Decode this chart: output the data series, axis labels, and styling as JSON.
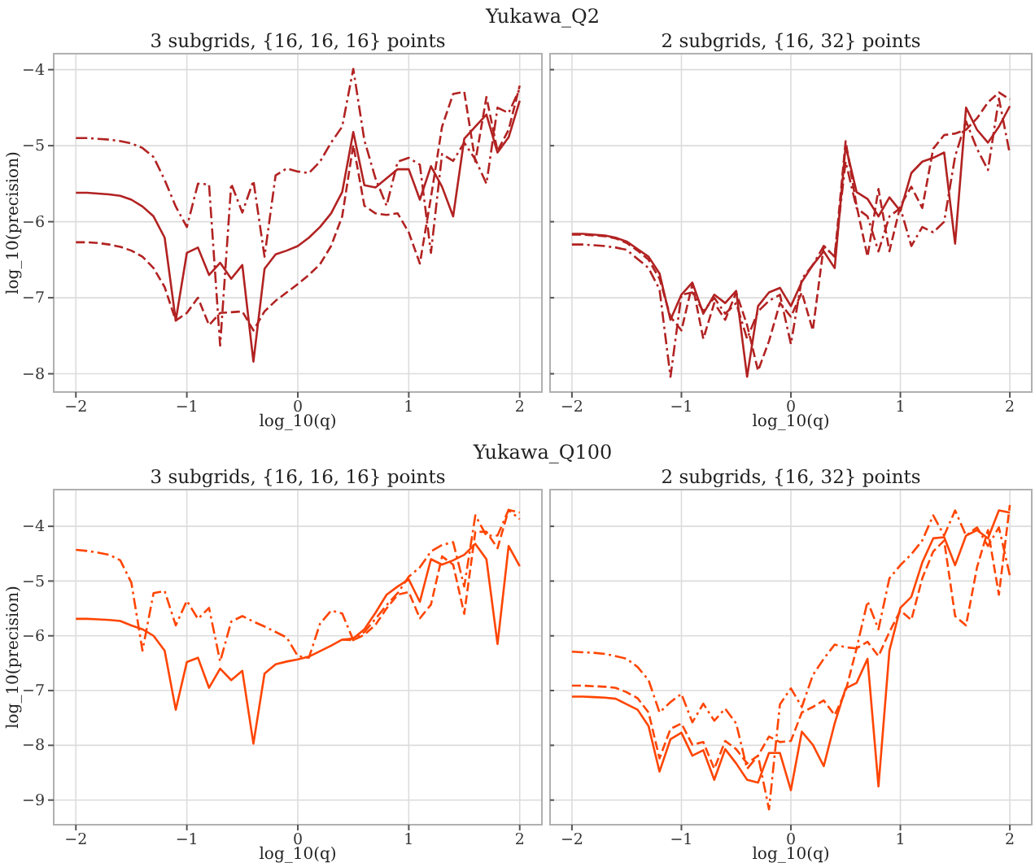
{
  "chart_data": [
    {
      "type": "line",
      "title": "3 subgrids, {16, 16, 16} points",
      "annotations": [
        "Yukawa_Q2"
      ],
      "xlabel": "log_10(q)",
      "ylabel": "log_10(precision)",
      "grid": true,
      "x": [
        -2,
        -1.9,
        -1.8,
        -1.7,
        -1.6,
        -1.5,
        -1.4,
        -1.3,
        -1.2,
        -1.1,
        -1,
        -0.9,
        -0.8,
        -0.7,
        -0.6,
        -0.5,
        -0.4,
        -0.3,
        -0.2,
        -0.1,
        0,
        0.1,
        0.2,
        0.3,
        0.4,
        0.5,
        0.6,
        0.7,
        0.8,
        0.9,
        1,
        1.1,
        1.2,
        1.3,
        1.4,
        1.5,
        1.6,
        1.7,
        1.8,
        1.9,
        2
      ],
      "xlim": [
        -2.2,
        2.2
      ],
      "ylim": [
        -8.24,
        -3.79
      ],
      "xticks": [
        -2,
        -1,
        0,
        1,
        2
      ],
      "yticks": [
        {
          "value": -8,
          "label": "−8"
        },
        {
          "value": -7,
          "label": "−7"
        },
        {
          "value": -6,
          "label": "−6"
        },
        {
          "value": -5,
          "label": "−5"
        },
        {
          "value": -4,
          "label": "−4"
        }
      ],
      "series": [
        {
          "color": "#b22222",
          "line_style": "solid",
          "values": [
            -5.62,
            -5.62,
            -5.63,
            -5.64,
            -5.66,
            -5.71,
            -5.8,
            -5.93,
            -6.21,
            -7.3,
            -6.41,
            -6.34,
            -6.7,
            -6.54,
            -6.75,
            -6.57,
            -7.84,
            -6.62,
            -6.43,
            -6.38,
            -6.32,
            -6.21,
            -6.07,
            -5.89,
            -5.61,
            -4.82,
            -5.52,
            -5.55,
            -5.43,
            -5.31,
            -5.31,
            -5.71,
            -5.27,
            -5.54,
            -5.93,
            -4.91,
            -4.75,
            -4.59,
            -5.09,
            -4.89,
            -4.41
          ]
        },
        {
          "color": "#b22222",
          "line_style": "dashed",
          "values": [
            -6.27,
            -6.27,
            -6.28,
            -6.3,
            -6.33,
            -6.38,
            -6.46,
            -6.61,
            -6.86,
            -7.3,
            -7.2,
            -7.0,
            -7.36,
            -7.2,
            -7.19,
            -7.18,
            -7.43,
            -7.18,
            -7.04,
            -6.93,
            -6.82,
            -6.7,
            -6.56,
            -6.32,
            -5.93,
            -4.99,
            -5.79,
            -5.89,
            -5.91,
            -5.89,
            -6.14,
            -6.55,
            -5.68,
            -4.75,
            -4.32,
            -4.29,
            -5.21,
            -4.36,
            -5.07,
            -4.79,
            -4.21
          ]
        },
        {
          "color": "#b22222",
          "line_style": "dashdot",
          "values": [
            -4.9,
            -4.9,
            -4.91,
            -4.92,
            -4.94,
            -4.97,
            -5.03,
            -5.15,
            -5.45,
            -5.8,
            -6.07,
            -5.5,
            -5.51,
            -7.63,
            -5.5,
            -5.88,
            -5.46,
            -6.46,
            -5.39,
            -5.3,
            -5.34,
            -5.36,
            -5.21,
            -4.96,
            -4.75,
            -3.99,
            -4.93,
            -5.43,
            -5.79,
            -5.21,
            -5.16,
            -5.25,
            -6.41,
            -5.11,
            -5.2,
            -4.96,
            -5.18,
            -5.5,
            -4.5,
            -4.57,
            -4.25
          ]
        }
      ]
    },
    {
      "type": "line",
      "title": "2 subgrids, {16, 32} points",
      "xlabel": "log_10(q)",
      "grid": true,
      "tick_labels": "x",
      "x": [
        -2,
        -1.9,
        -1.8,
        -1.7,
        -1.6,
        -1.5,
        -1.4,
        -1.3,
        -1.2,
        -1.1,
        -1,
        -0.9,
        -0.8,
        -0.7,
        -0.6,
        -0.5,
        -0.4,
        -0.3,
        -0.2,
        -0.1,
        0,
        0.1,
        0.2,
        0.3,
        0.4,
        0.5,
        0.6,
        0.7,
        0.8,
        0.9,
        1,
        1.1,
        1.2,
        1.3,
        1.4,
        1.5,
        1.6,
        1.7,
        1.8,
        1.9,
        2
      ],
      "xlim": [
        -2.2,
        2.2
      ],
      "ylim": [
        -8.24,
        -3.79
      ],
      "xticks": [
        -2,
        -1,
        0,
        1,
        2
      ],
      "yticks": [
        {
          "value": -8,
          "label": null
        },
        {
          "value": -7,
          "label": null
        },
        {
          "value": -6,
          "label": null
        },
        {
          "value": -5,
          "label": null
        },
        {
          "value": -4,
          "label": null
        }
      ],
      "series": [
        {
          "color": "#b22222",
          "line_style": "solid",
          "values": [
            -6.16,
            -6.16,
            -6.17,
            -6.18,
            -6.21,
            -6.26,
            -6.36,
            -6.46,
            -6.68,
            -7.29,
            -6.96,
            -6.8,
            -7.21,
            -6.96,
            -7.07,
            -6.91,
            -8.04,
            -7.11,
            -6.93,
            -6.87,
            -7.11,
            -6.79,
            -6.57,
            -6.39,
            -6.61,
            -5.0,
            -5.61,
            -5.7,
            -5.93,
            -5.68,
            -5.86,
            -5.36,
            -5.21,
            -5.16,
            -5.09,
            -6.29,
            -4.5,
            -4.79,
            -4.96,
            -4.75,
            -4.48
          ]
        },
        {
          "color": "#b22222",
          "line_style": "dashed",
          "values": [
            -6.17,
            -6.17,
            -6.18,
            -6.19,
            -6.22,
            -6.28,
            -6.38,
            -6.5,
            -6.75,
            -7.25,
            -7.43,
            -6.82,
            -7.54,
            -7.07,
            -7.29,
            -6.93,
            -7.36,
            -7.96,
            -7.57,
            -7.07,
            -7.25,
            -6.93,
            -7.43,
            -6.32,
            -6.46,
            -4.94,
            -5.79,
            -6.46,
            -5.57,
            -6.39,
            -5.79,
            -5.54,
            -5.82,
            -5.04,
            -4.86,
            -4.84,
            -4.79,
            -4.64,
            -4.43,
            -4.3,
            -4.39
          ]
        },
        {
          "color": "#b22222",
          "line_style": "dashdot",
          "values": [
            -6.3,
            -6.3,
            -6.31,
            -6.32,
            -6.34,
            -6.37,
            -6.49,
            -6.61,
            -6.89,
            -8.04,
            -6.96,
            -6.93,
            -7.18,
            -7.0,
            -7.21,
            -7.07,
            -7.54,
            -7.18,
            -7.04,
            -6.96,
            -7.61,
            -6.75,
            -6.57,
            -6.32,
            -6.46,
            -5.21,
            -5.82,
            -5.93,
            -6.39,
            -5.93,
            -5.82,
            -6.32,
            -6.07,
            -6.14,
            -6.0,
            -5.14,
            -4.68,
            -5.04,
            -5.32,
            -4.38,
            -5.11
          ]
        }
      ]
    },
    {
      "type": "line",
      "title": "3 subgrids, {16, 16, 16} points",
      "annotations": [
        "Yukawa_Q100"
      ],
      "xlabel": "log_10(q)",
      "ylabel": "log_10(precision)",
      "grid": true,
      "x": [
        -2,
        -1.9,
        -1.8,
        -1.7,
        -1.6,
        -1.5,
        -1.4,
        -1.3,
        -1.2,
        -1.1,
        -1,
        -0.9,
        -0.8,
        -0.7,
        -0.6,
        -0.5,
        -0.4,
        -0.3,
        -0.2,
        -0.1,
        0,
        0.1,
        0.2,
        0.3,
        0.4,
        0.5,
        0.6,
        0.7,
        0.8,
        0.9,
        1,
        1.1,
        1.2,
        1.3,
        1.4,
        1.5,
        1.6,
        1.7,
        1.8,
        1.9,
        2
      ],
      "xlim": [
        -2.2,
        2.2
      ],
      "ylim": [
        -9.45,
        -3.33
      ],
      "xticks": [
        -2,
        -1,
        0,
        1,
        2
      ],
      "yticks": [
        {
          "value": -9,
          "label": "−9"
        },
        {
          "value": -8,
          "label": "−8"
        },
        {
          "value": -7,
          "label": "−7"
        },
        {
          "value": -6,
          "label": "−6"
        },
        {
          "value": -5,
          "label": "−5"
        },
        {
          "value": -4,
          "label": "−4"
        }
      ],
      "series": [
        {
          "color": "#ff4500",
          "line_style": "solid",
          "values": [
            -5.69,
            -5.69,
            -5.7,
            -5.71,
            -5.73,
            -5.81,
            -5.88,
            -6.0,
            -6.27,
            -7.35,
            -6.48,
            -6.4,
            -6.95,
            -6.6,
            -6.81,
            -6.64,
            -7.97,
            -6.69,
            -6.52,
            -6.47,
            -6.43,
            -6.38,
            -6.28,
            -6.18,
            -6.07,
            -6.05,
            -5.88,
            -5.58,
            -5.25,
            -5.1,
            -4.97,
            -5.38,
            -4.6,
            -4.7,
            -4.62,
            -4.52,
            -4.32,
            -4.6,
            -6.15,
            -4.36,
            -4.73
          ]
        },
        {
          "color": "#ff4500",
          "line_style": "dashed",
          "values": [
            null,
            null,
            null,
            null,
            null,
            null,
            null,
            null,
            null,
            null,
            null,
            null,
            null,
            null,
            null,
            null,
            null,
            null,
            null,
            null,
            null,
            null,
            null,
            null,
            -6.07,
            -6.08,
            -5.98,
            -5.8,
            -5.5,
            -5.25,
            -5.2,
            -5.68,
            -5.43,
            -4.55,
            -4.7,
            -5.6,
            -4.1,
            -4.1,
            -4.4,
            -3.7,
            -3.75
          ]
        },
        {
          "color": "#ff4500",
          "line_style": "dashdot",
          "values": [
            -4.43,
            -4.45,
            -4.48,
            -4.52,
            -4.62,
            -5.03,
            -6.27,
            -5.22,
            -5.18,
            -5.81,
            -5.36,
            -5.69,
            -5.49,
            -6.47,
            -5.74,
            -5.64,
            -5.74,
            -5.83,
            -5.93,
            -6.03,
            -6.37,
            -6.4,
            -5.78,
            -5.54,
            -5.59,
            -6.08,
            -5.93,
            -5.69,
            -5.44,
            -5.22,
            -4.92,
            -4.75,
            -4.46,
            -4.34,
            -4.29,
            -5.1,
            -3.8,
            -4.17,
            -4.17,
            -3.7,
            -3.87
          ]
        }
      ]
    },
    {
      "type": "line",
      "title": "2 subgrids, {16, 32} points",
      "xlabel": "log_10(q)",
      "grid": true,
      "tick_labels": "x",
      "x": [
        -2,
        -1.9,
        -1.8,
        -1.7,
        -1.6,
        -1.5,
        -1.4,
        -1.3,
        -1.2,
        -1.1,
        -1,
        -0.9,
        -0.8,
        -0.7,
        -0.6,
        -0.5,
        -0.4,
        -0.3,
        -0.2,
        -0.1,
        0,
        0.1,
        0.2,
        0.3,
        0.4,
        0.5,
        0.6,
        0.7,
        0.8,
        0.9,
        1,
        1.1,
        1.2,
        1.3,
        1.4,
        1.5,
        1.6,
        1.7,
        1.8,
        1.9,
        2
      ],
      "xlim": [
        -2.2,
        2.2
      ],
      "ylim": [
        -9.45,
        -3.33
      ],
      "xticks": [
        -2,
        -1,
        0,
        1,
        2
      ],
      "yticks": [
        {
          "value": -9,
          "label": null
        },
        {
          "value": -8,
          "label": null
        },
        {
          "value": -7,
          "label": null
        },
        {
          "value": -6,
          "label": null
        },
        {
          "value": -5,
          "label": null
        },
        {
          "value": -4,
          "label": null
        }
      ],
      "series": [
        {
          "color": "#ff4500",
          "line_style": "solid",
          "values": [
            -7.11,
            -7.11,
            -7.12,
            -7.13,
            -7.15,
            -7.25,
            -7.35,
            -7.65,
            -8.48,
            -7.89,
            -7.77,
            -8.19,
            -8.09,
            -8.63,
            -8.07,
            -8.33,
            -8.63,
            -8.68,
            -8.14,
            -8.14,
            -8.82,
            -7.75,
            -7.99,
            -8.38,
            -7.6,
            -6.96,
            -6.86,
            -6.42,
            -8.75,
            -6.27,
            -5.49,
            -5.29,
            -4.66,
            -4.22,
            -4.2,
            -4.71,
            -4.17,
            -4.07,
            -4.22,
            -3.71,
            -3.75
          ]
        },
        {
          "color": "#ff4500",
          "line_style": "dashed",
          "values": [
            -6.91,
            -6.91,
            -6.92,
            -6.93,
            -6.95,
            -7.03,
            -7.14,
            -7.4,
            -8.24,
            -7.7,
            -7.6,
            -7.99,
            -7.94,
            -8.43,
            -7.92,
            -8.07,
            -8.33,
            -8.19,
            -7.84,
            -7.94,
            -7.92,
            -7.4,
            -7.3,
            -7.18,
            -7.45,
            -7.01,
            -6.23,
            -6.11,
            -6.37,
            -5.93,
            -5.54,
            -5.71,
            -4.95,
            -4.46,
            -4.26,
            -5.64,
            -5.81,
            -4.75,
            -4.07,
            -5.25,
            -3.61
          ]
        },
        {
          "color": "#ff4500",
          "line_style": "dashdot",
          "values": [
            -6.29,
            -6.3,
            -6.31,
            -6.33,
            -6.37,
            -6.42,
            -6.57,
            -6.81,
            -7.4,
            -7.21,
            -7.06,
            -7.58,
            -7.24,
            -7.55,
            -7.33,
            -7.6,
            -8.43,
            -8.19,
            -9.17,
            -7.25,
            -6.96,
            -7.3,
            -6.72,
            -6.42,
            -6.16,
            -6.21,
            -6.23,
            -5.37,
            -5.88,
            -4.95,
            -4.71,
            -4.51,
            -4.26,
            -3.8,
            -4.17,
            -3.71,
            -4.17,
            -4.02,
            -4.36,
            -4.02,
            -4.9
          ]
        }
      ]
    }
  ]
}
